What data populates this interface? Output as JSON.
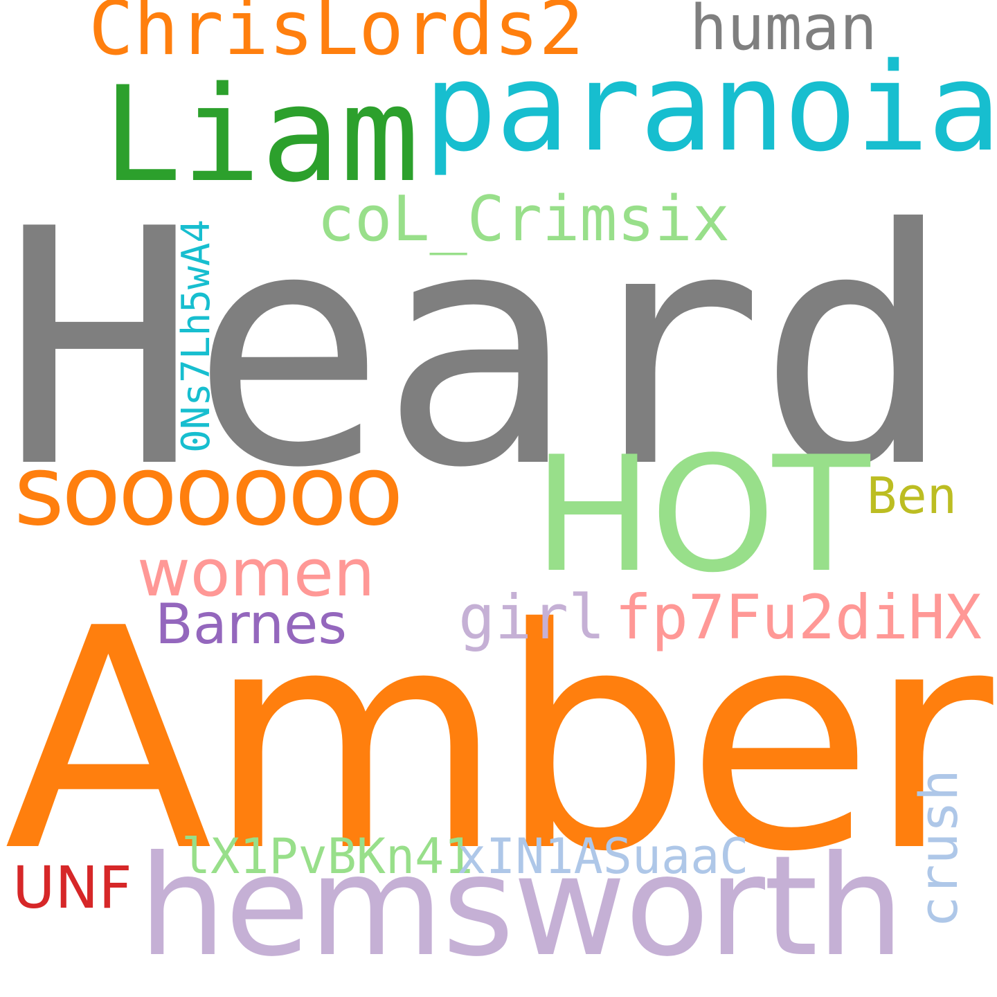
{
  "words": {
    "heard": {
      "text": "Heard",
      "color": "#7f7f7f"
    },
    "amber": {
      "text": "Amber",
      "color": "#ff7f0e"
    },
    "hemsworth": {
      "text": "hemsworth",
      "color": "#c5b0d5"
    },
    "hot": {
      "text": "HOT",
      "color": "#98df8a"
    },
    "liam": {
      "text": "Liam",
      "color": "#2ca02c"
    },
    "paranoia": {
      "text": "paranoia",
      "color": "#17becf"
    },
    "sooooo": {
      "text": "soooooo",
      "color": "#ff7f0e"
    },
    "chris": {
      "text": "ChrisLords2",
      "color": "#ff7f0e"
    },
    "human": {
      "text": "human",
      "color": "#7f7f7f"
    },
    "crimsix": {
      "text": "coL_Crimsix",
      "color": "#98df8a"
    },
    "women": {
      "text": "women",
      "color": "#ff9896"
    },
    "barnes": {
      "text": "Barnes",
      "color": "#9467bd"
    },
    "ben": {
      "text": "Ben",
      "color": "#bcbd22"
    },
    "girl": {
      "text": "girl",
      "color": "#c5b0d5"
    },
    "fp7": {
      "text": "fp7Fu2diHX",
      "color": "#ff9896"
    },
    "lx1": {
      "text": "lX1PvBKn41",
      "color": "#98df8a"
    },
    "xin1": {
      "text": "xIN1ASuaaC",
      "color": "#aec7e8"
    },
    "unf": {
      "text": "UNF",
      "color": "#d62728"
    },
    "ons7": {
      "text": "0Ns7Lh5wA4",
      "color": "#17becf"
    },
    "crush": {
      "text": "crush",
      "color": "#aec7e8"
    }
  }
}
